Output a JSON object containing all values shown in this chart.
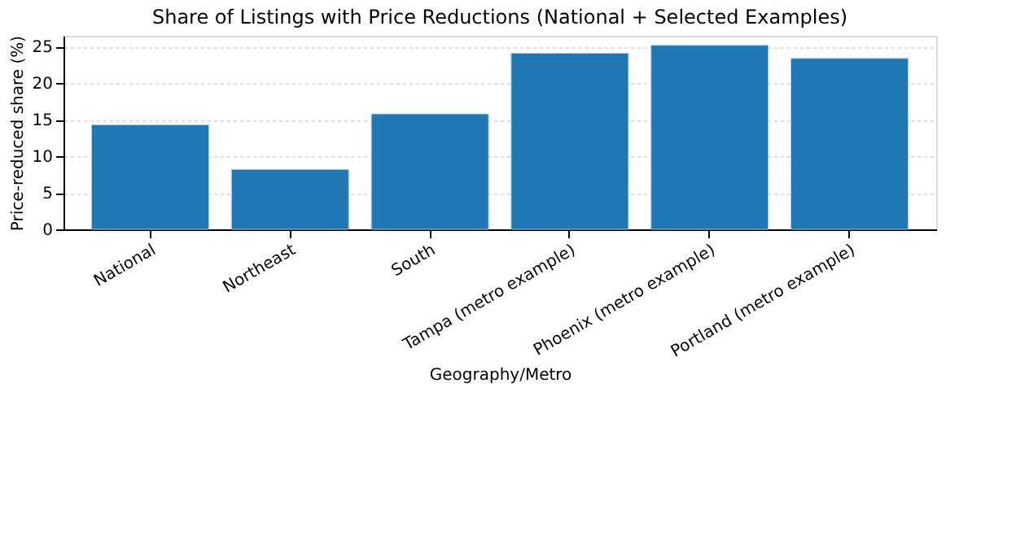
{
  "chart_data": {
    "type": "bar",
    "title": "Share of Listings with Price Reductions (National + Selected Examples)",
    "xlabel": "Geography/Metro",
    "ylabel": "Price-reduced share (%)",
    "categories": [
      "National",
      "Northeast",
      "South",
      "Tampa (metro example)",
      "Phoenix (metro example)",
      "Portland (metro example)"
    ],
    "values": [
      14.3,
      8.2,
      15.8,
      24.1,
      25.2,
      23.4
    ],
    "color": "#1f77b4",
    "ylim": [
      0,
      26.5
    ],
    "yticks": [
      0,
      5,
      10,
      15,
      20,
      25
    ],
    "grid": "y"
  }
}
